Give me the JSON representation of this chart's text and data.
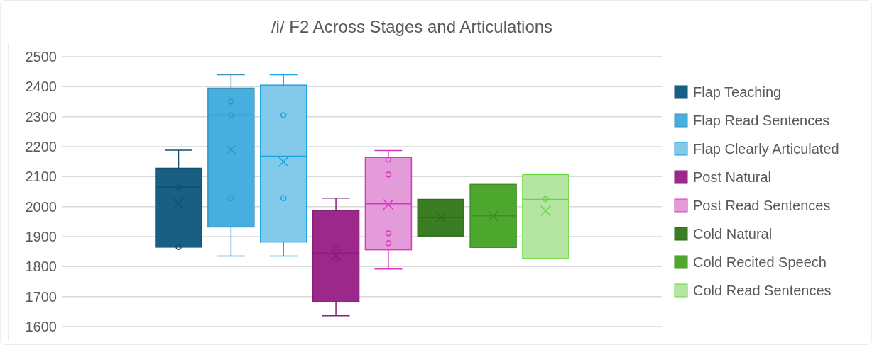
{
  "chart_data": {
    "type": "box",
    "title": "/i/ F2 Across Stages and Articulations",
    "categories": [
      null
    ],
    "ylim": [
      1600,
      2500
    ],
    "yticks": [
      1600,
      1700,
      1800,
      1900,
      2000,
      2100,
      2200,
      2300,
      2400,
      2500
    ],
    "grid": "y",
    "legend": "right",
    "tick_labels": "y",
    "series": [
      {
        "name": "Flap Teaching",
        "color": "#185f83",
        "boxes": [
          {
            "low": 1865,
            "q1": 1865,
            "median": 2065,
            "q3": 2128,
            "high": 2188,
            "mean": 2010,
            "outliers": [
              2065,
              1865
            ]
          }
        ]
      },
      {
        "name": "Flap Read Sentences",
        "color": "#47afe0",
        "boxes": [
          {
            "low": 1835,
            "q1": 1932,
            "median": 2305,
            "q3": 2395,
            "high": 2440,
            "mean": 2190,
            "outliers": [
              2350,
              2305,
              2028
            ]
          }
        ]
      },
      {
        "name": "Flap Clearly Articulated",
        "color": "#83caea",
        "boxes": [
          {
            "low": 1835,
            "q1": 1882,
            "median": 2168,
            "q3": 2405,
            "high": 2440,
            "mean": 2150,
            "outliers": [
              2305,
              2028
            ]
          }
        ]
      },
      {
        "name": "Post Natural",
        "color": "#9d288c",
        "boxes": [
          {
            "low": 1636,
            "q1": 1682,
            "median": 1845,
            "q3": 1987,
            "high": 2028,
            "mean": 1838,
            "outliers": [
              1862,
              1825
            ]
          }
        ]
      },
      {
        "name": "Post Read Sentences",
        "color": "#e39cd9",
        "boxes": [
          {
            "low": 1792,
            "q1": 1856,
            "median": 2009,
            "q3": 2164,
            "high": 2187,
            "mean": 2007,
            "outliers": [
              2157,
              2107,
              1911,
              1878
            ]
          }
        ]
      },
      {
        "name": "Cold Natural",
        "color": "#3b7d23",
        "boxes": [
          {
            "low": 1902,
            "q1": 1902,
            "median": 1963,
            "q3": 2024,
            "high": 2024,
            "mean": 1965
          }
        ]
      },
      {
        "name": "Cold Recited Speech",
        "color": "#4ea72e",
        "boxes": [
          {
            "low": 1864,
            "q1": 1864,
            "median": 1969,
            "q3": 2074,
            "high": 2074,
            "mean": 1969
          }
        ]
      },
      {
        "name": "Cold Read Sentences",
        "color": "#b4e5a2",
        "boxes": [
          {
            "low": 1827,
            "q1": 1827,
            "median": 2024,
            "q3": 2107,
            "high": 2107,
            "mean": 1986,
            "outliers": [
              2025
            ]
          }
        ]
      }
    ]
  }
}
